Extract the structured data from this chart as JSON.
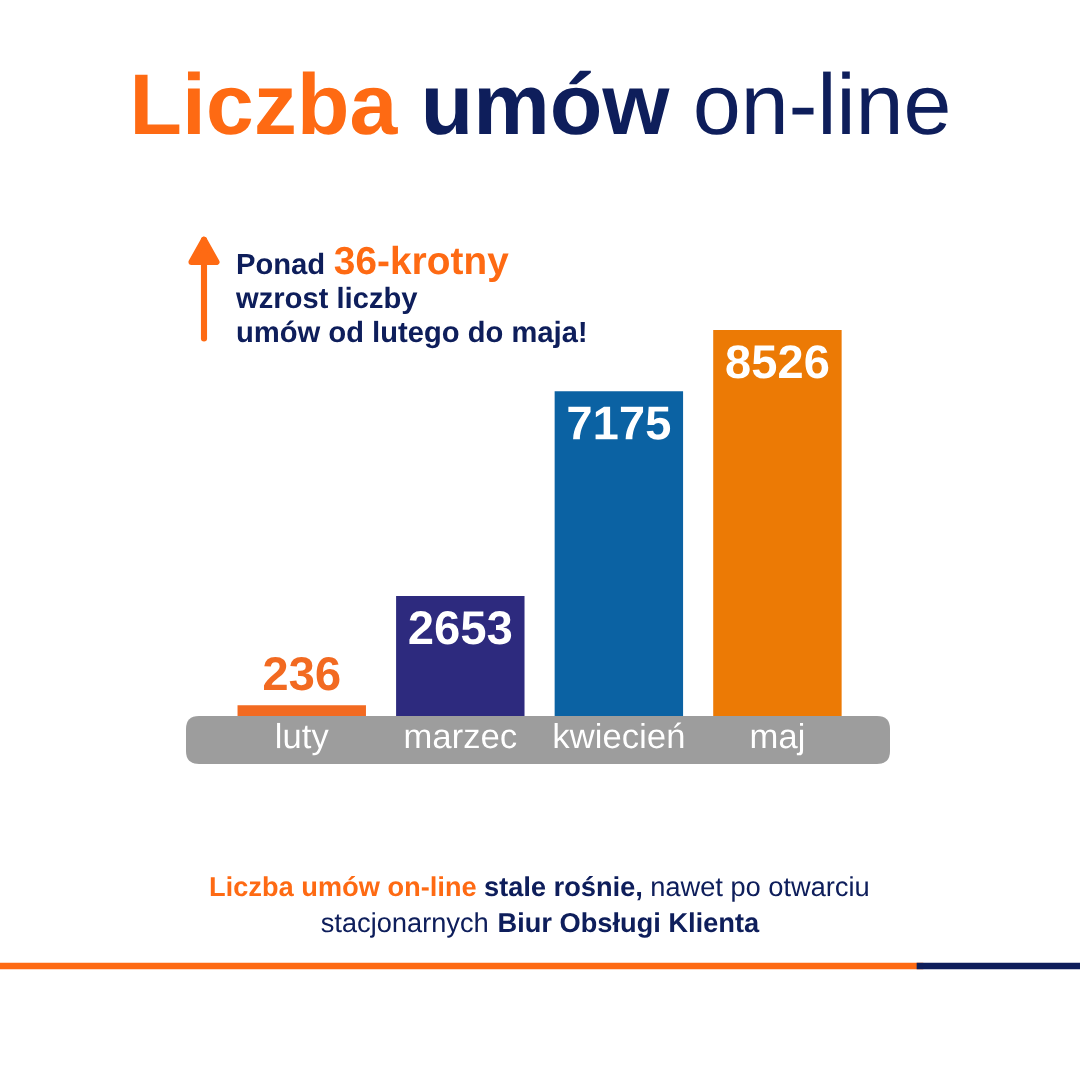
{
  "chart_data": {
    "type": "bar",
    "title": "Liczba umów on-line",
    "categories": [
      "luty",
      "marzec",
      "kwiecień",
      "maj"
    ],
    "values": [
      236,
      2653,
      7175,
      8526
    ],
    "colors": [
      "#f26a21",
      "#2d2a7e",
      "#0b62a3",
      "#ec7a05"
    ],
    "data_labels": true,
    "annotations": [
      "Ponad 36-krotny\nwzrost liczby\numów od lutego do maja!",
      "Liczba umów on-line stale rośnie, nawet po otwarciu\nstacjonarnych Biur Obsługi Klienta"
    ]
  }
}
